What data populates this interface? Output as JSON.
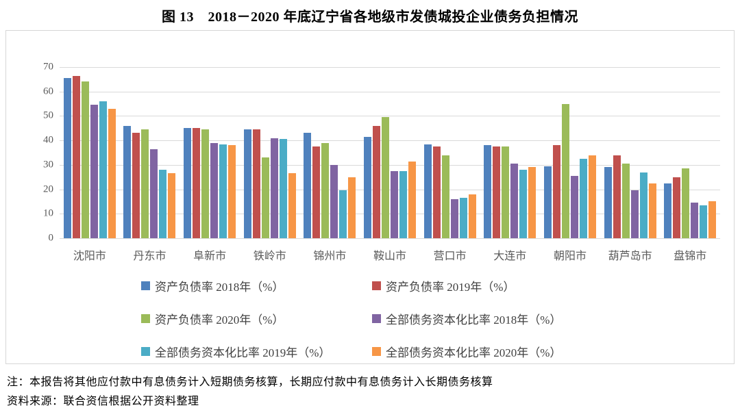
{
  "title": "图 13　2018－2020 年底辽宁省各地级市发债城投企业债务负担情况",
  "notes": {
    "note1": "注：本报告将其他应付款中有息债务计入短期债务核算，长期应付款中有息债务计入长期债务核算",
    "source": "资料来源：联合资信根据公开资料整理"
  },
  "colors": {
    "frame_border": "#d6d6d6",
    "gridline": "#d9d9d9",
    "axis_text": "#595959"
  },
  "chart_data": {
    "type": "bar",
    "title": "图 13　2018－2020 年底辽宁省各地级市发债城投企业债务负担情况",
    "xlabel": "",
    "ylabel": "",
    "ylim": [
      0,
      70
    ],
    "yticks": [
      0,
      10,
      20,
      30,
      40,
      50,
      60,
      70
    ],
    "grid": true,
    "legend_position": "bottom",
    "categories": [
      "沈阳市",
      "丹东市",
      "阜新市",
      "铁岭市",
      "锦州市",
      "鞍山市",
      "营口市",
      "大连市",
      "朝阳市",
      "葫芦岛市",
      "盘锦市"
    ],
    "series": [
      {
        "name": "资产负债率 2018年（%）",
        "color": "#4F81BD",
        "values": [
          65.5,
          46,
          45,
          44.5,
          43,
          41.5,
          38.5,
          38,
          29.5,
          29,
          22.5
        ]
      },
      {
        "name": "资产负债率 2019年（%）",
        "color": "#C0504D",
        "values": [
          66.5,
          43,
          45,
          44.5,
          37.5,
          46,
          37.5,
          37.5,
          38,
          34,
          25
        ]
      },
      {
        "name": "资产负债率 2020年（%）",
        "color": "#9BBB59",
        "values": [
          64,
          44.5,
          44.5,
          33,
          39,
          49.5,
          34,
          37.5,
          55,
          30.5,
          28.5
        ]
      },
      {
        "name": "全部债务资本化比率 2018年（%）",
        "color": "#8064A2",
        "values": [
          54.5,
          36.5,
          39,
          41,
          30,
          27.5,
          16,
          30.5,
          25.5,
          19.5,
          14.5
        ]
      },
      {
        "name": "全部债务资本化比率 2019年（%）",
        "color": "#4BACC6",
        "values": [
          56,
          28,
          38.5,
          40.5,
          19.5,
          27.5,
          16.5,
          28,
          32.5,
          27,
          13.5
        ]
      },
      {
        "name": "全部债务资本化比率 2020年（%）",
        "color": "#F79646",
        "values": [
          53,
          26.5,
          38,
          26.5,
          25,
          31.5,
          18,
          29,
          34,
          22.5,
          15
        ]
      }
    ]
  }
}
